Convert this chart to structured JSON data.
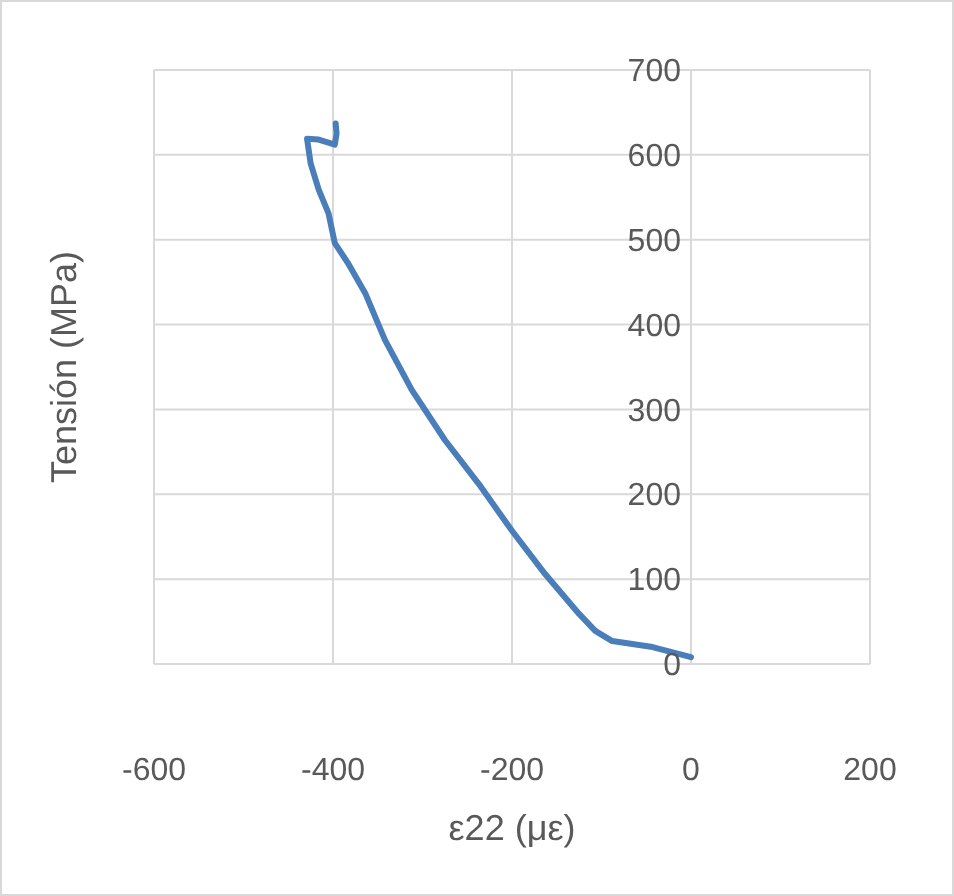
{
  "chart_data": {
    "type": "line",
    "xlabel": "ε22 (με)",
    "ylabel": "Tensión (MPa)",
    "xlim": [
      -600,
      200
    ],
    "xticks": [
      -600,
      -400,
      -200,
      0,
      200
    ],
    "ylim": [
      0,
      700
    ],
    "yticks": [
      0,
      100,
      200,
      300,
      400,
      500,
      600,
      700
    ],
    "grid": true,
    "marker": "none",
    "line_style": "solid",
    "series": [
      {
        "color": "#4a7ebb",
        "x": [
          0,
          -43,
          -88,
          -107,
          -125,
          -163,
          -200,
          -237,
          -275,
          -312,
          -342,
          -364,
          -383,
          -398,
          -405,
          -416,
          -425,
          -429,
          -416,
          -398,
          -396,
          -397
        ],
        "values": [
          8,
          20,
          27,
          39,
          59,
          106,
          157,
          212,
          264,
          323,
          382,
          437,
          472,
          496,
          531,
          559,
          590,
          619,
          618,
          612,
          625,
          637
        ]
      }
    ]
  }
}
